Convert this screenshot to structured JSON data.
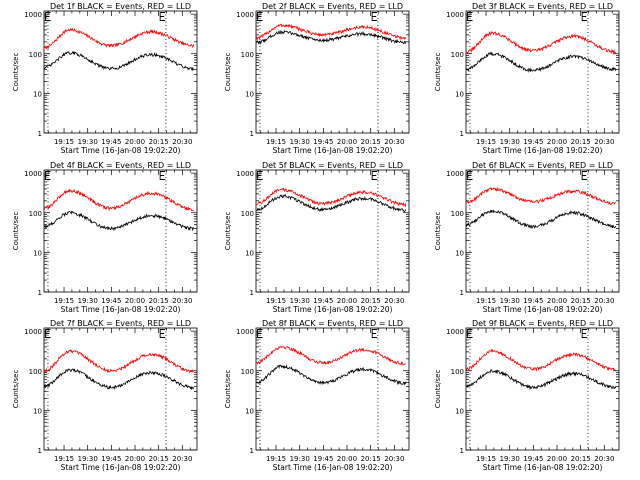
{
  "figure": {
    "background": "#ffffff",
    "colors": {
      "events": "#000000",
      "lld": "#ff0000",
      "axes": "#000000"
    }
  },
  "chart_data": [
    {
      "type": "line",
      "title": "Det 1f BLACK = Events, RED = LLD",
      "xlabel": "Start Time (16-Jan-08 19:02:20)",
      "ylabel": "Counts/sec",
      "xticklabels": [
        "19:15",
        "19:30",
        "19:45",
        "20:00",
        "20:15",
        "20:30"
      ],
      "xticks_min": [
        12.7,
        27.7,
        42.7,
        57.7,
        72.7,
        87.7
      ],
      "xlim": [
        0,
        97
      ],
      "yscale": "log",
      "ylim": [
        1,
        1200
      ],
      "yticklabels": [
        "1",
        "10",
        "100",
        "1000"
      ],
      "markers": {
        "E_min": [
          0,
          72.7
        ],
        "dotted_min": [
          2.5,
          77.3
        ]
      },
      "series": [
        {
          "color": "#ff0000",
          "peaks": [
            {
              "t": 16.5,
              "v": 400
            },
            {
              "t": 68.0,
              "v": 360
            }
          ],
          "valleys": [
            {
              "t": 0,
              "v": 140
            },
            {
              "t": 42.5,
              "v": 160
            },
            {
              "t": 95,
              "v": 160
            }
          ]
        },
        {
          "color": "#000000",
          "peaks": [
            {
              "t": 16.5,
              "v": 105
            },
            {
              "t": 68.0,
              "v": 95
            }
          ],
          "valleys": [
            {
              "t": 0,
              "v": 45
            },
            {
              "t": 42.5,
              "v": 42
            },
            {
              "t": 95,
              "v": 42
            }
          ]
        }
      ]
    },
    {
      "type": "line",
      "title": "Det 2f BLACK = Events, RED = LLD",
      "xlabel": "Start Time (16-Jan-08 19:02:20)",
      "ylabel": "Counts/sec",
      "xticklabels": [
        "19:15",
        "19:30",
        "19:45",
        "20:00",
        "20:15",
        "20:30"
      ],
      "xticks_min": [
        12.7,
        27.7,
        42.7,
        57.7,
        72.7,
        87.7
      ],
      "xlim": [
        0,
        97
      ],
      "yscale": "log",
      "ylim": [
        1,
        1200
      ],
      "yticklabels": [
        "1",
        "10",
        "100",
        "1000"
      ],
      "markers": {
        "E_min": [
          0,
          72.7
        ],
        "dotted_min": [
          2.5,
          77.3
        ]
      },
      "series": [
        {
          "color": "#ff0000",
          "peaks": [
            {
              "t": 16.5,
              "v": 520
            },
            {
              "t": 68.0,
              "v": 470
            }
          ],
          "valleys": [
            {
              "t": 0,
              "v": 250
            },
            {
              "t": 42.5,
              "v": 300
            },
            {
              "t": 95,
              "v": 250
            }
          ]
        },
        {
          "color": "#000000",
          "peaks": [
            {
              "t": 16.5,
              "v": 350
            },
            {
              "t": 68.0,
              "v": 320
            }
          ],
          "valleys": [
            {
              "t": 0,
              "v": 190
            },
            {
              "t": 42.5,
              "v": 220
            },
            {
              "t": 95,
              "v": 190
            }
          ]
        }
      ]
    },
    {
      "type": "line",
      "title": "Det 3f BLACK = Events, RED = LLD",
      "xlabel": "Start Time (16-Jan-08 19:02:20)",
      "ylabel": "Counts/sec",
      "xticklabels": [
        "19:15",
        "19:30",
        "19:45",
        "20:00",
        "20:15",
        "20:30"
      ],
      "xticks_min": [
        12.7,
        27.7,
        42.7,
        57.7,
        72.7,
        87.7
      ],
      "xlim": [
        0,
        97
      ],
      "yscale": "log",
      "ylim": [
        1,
        1200
      ],
      "yticklabels": [
        "1",
        "10",
        "100",
        "1000"
      ],
      "markers": {
        "E_min": [
          0,
          72.7
        ],
        "dotted_min": [
          2.5,
          77.3
        ]
      },
      "series": [
        {
          "color": "#ff0000",
          "peaks": [
            {
              "t": 16.5,
              "v": 330
            },
            {
              "t": 68.0,
              "v": 280
            }
          ],
          "valleys": [
            {
              "t": 0,
              "v": 110
            },
            {
              "t": 42.5,
              "v": 120
            },
            {
              "t": 95,
              "v": 110
            }
          ]
        },
        {
          "color": "#000000",
          "peaks": [
            {
              "t": 16.5,
              "v": 100
            },
            {
              "t": 68.0,
              "v": 85
            }
          ],
          "valleys": [
            {
              "t": 0,
              "v": 40
            },
            {
              "t": 42.5,
              "v": 38
            },
            {
              "t": 95,
              "v": 40
            }
          ]
        }
      ]
    },
    {
      "type": "line",
      "title": "Det 4f BLACK = Events, RED = LLD",
      "xlabel": "Start Time (16-Jan-08 19:02:20)",
      "ylabel": "Counts/sec",
      "xticklabels": [
        "19:15",
        "19:30",
        "19:45",
        "20:00",
        "20:15",
        "20:30"
      ],
      "xticks_min": [
        12.7,
        27.7,
        42.7,
        57.7,
        72.7,
        87.7
      ],
      "xlim": [
        0,
        97
      ],
      "yscale": "log",
      "ylim": [
        1,
        1200
      ],
      "yticklabels": [
        "1",
        "10",
        "100",
        "1000"
      ],
      "markers": {
        "E_min": [
          0,
          72.7
        ],
        "dotted_min": [
          2.5,
          77.3
        ]
      },
      "series": [
        {
          "color": "#ff0000",
          "peaks": [
            {
              "t": 16.5,
              "v": 360
            },
            {
              "t": 68.0,
              "v": 310
            }
          ],
          "valleys": [
            {
              "t": 0,
              "v": 130
            },
            {
              "t": 42.5,
              "v": 130
            },
            {
              "t": 95,
              "v": 120
            }
          ]
        },
        {
          "color": "#000000",
          "peaks": [
            {
              "t": 16.5,
              "v": 100
            },
            {
              "t": 68.0,
              "v": 85
            }
          ],
          "valleys": [
            {
              "t": 0,
              "v": 45
            },
            {
              "t": 42.5,
              "v": 40
            },
            {
              "t": 95,
              "v": 40
            }
          ]
        }
      ]
    },
    {
      "type": "line",
      "title": "Det 5f BLACK = Events, RED = LLD",
      "xlabel": "Start Time (16-Jan-08 19:02:20)",
      "ylabel": "Counts/sec",
      "xticklabels": [
        "19:15",
        "19:30",
        "19:45",
        "20:00",
        "20:15",
        "20:30"
      ],
      "xticks_min": [
        12.7,
        27.7,
        42.7,
        57.7,
        72.7,
        87.7
      ],
      "xlim": [
        0,
        97
      ],
      "yscale": "log",
      "ylim": [
        1,
        1200
      ],
      "yticklabels": [
        "1",
        "10",
        "100",
        "1000"
      ],
      "markers": {
        "E_min": [
          0,
          72.7
        ],
        "dotted_min": [
          2.5,
          77.3
        ]
      },
      "series": [
        {
          "color": "#ff0000",
          "peaks": [
            {
              "t": 16.5,
              "v": 380
            },
            {
              "t": 68.0,
              "v": 330
            }
          ],
          "valleys": [
            {
              "t": 0,
              "v": 170
            },
            {
              "t": 42.5,
              "v": 170
            },
            {
              "t": 95,
              "v": 160
            }
          ]
        },
        {
          "color": "#000000",
          "peaks": [
            {
              "t": 16.5,
              "v": 260
            },
            {
              "t": 68.0,
              "v": 230
            }
          ],
          "valleys": [
            {
              "t": 0,
              "v": 120
            },
            {
              "t": 42.5,
              "v": 120
            },
            {
              "t": 95,
              "v": 115
            }
          ]
        }
      ]
    },
    {
      "type": "line",
      "title": "Det 6f BLACK = Events, RED = LLD",
      "xlabel": "Start Time (16-Jan-08 19:02:20)",
      "ylabel": "Counts/sec",
      "xticklabels": [
        "19:15",
        "19:30",
        "19:45",
        "20:00",
        "20:15",
        "20:30"
      ],
      "xticks_min": [
        12.7,
        27.7,
        42.7,
        57.7,
        72.7,
        87.7
      ],
      "xlim": [
        0,
        97
      ],
      "yscale": "log",
      "ylim": [
        1,
        1200
      ],
      "yticklabels": [
        "1",
        "10",
        "100",
        "1000"
      ],
      "markers": {
        "E_min": [
          0,
          72.7
        ],
        "dotted_min": [
          2.5,
          77.3
        ]
      },
      "series": [
        {
          "color": "#ff0000",
          "peaks": [
            {
              "t": 16.5,
              "v": 400
            },
            {
              "t": 68.0,
              "v": 350
            }
          ],
          "valleys": [
            {
              "t": 0,
              "v": 180
            },
            {
              "t": 42.5,
              "v": 190
            },
            {
              "t": 95,
              "v": 170
            }
          ]
        },
        {
          "color": "#000000",
          "peaks": [
            {
              "t": 16.5,
              "v": 110
            },
            {
              "t": 68.0,
              "v": 100
            }
          ],
          "valleys": [
            {
              "t": 0,
              "v": 50
            },
            {
              "t": 42.5,
              "v": 45
            },
            {
              "t": 95,
              "v": 45
            }
          ]
        }
      ]
    },
    {
      "type": "line",
      "title": "Det 7f BLACK = Events, RED = LLD",
      "xlabel": "Start Time (16-Jan-08 19:02:20)",
      "ylabel": "Counts/sec",
      "xticklabels": [
        "19:15",
        "19:30",
        "19:45",
        "20:00",
        "20:15",
        "20:30"
      ],
      "xticks_min": [
        12.7,
        27.7,
        42.7,
        57.7,
        72.7,
        87.7
      ],
      "xlim": [
        0,
        97
      ],
      "yscale": "log",
      "ylim": [
        1,
        1200
      ],
      "yticklabels": [
        "1",
        "10",
        "100",
        "1000"
      ],
      "markers": {
        "E_min": [
          0,
          72.7
        ],
        "dotted_min": [
          2.5,
          77.3
        ]
      },
      "series": [
        {
          "color": "#ff0000",
          "peaks": [
            {
              "t": 16.5,
              "v": 310
            },
            {
              "t": 68.0,
              "v": 260
            }
          ],
          "valleys": [
            {
              "t": 0,
              "v": 100
            },
            {
              "t": 42.5,
              "v": 100
            },
            {
              "t": 95,
              "v": 95
            }
          ]
        },
        {
          "color": "#000000",
          "peaks": [
            {
              "t": 16.5,
              "v": 105
            },
            {
              "t": 68.0,
              "v": 90
            }
          ],
          "valleys": [
            {
              "t": 0,
              "v": 40
            },
            {
              "t": 42.5,
              "v": 38
            },
            {
              "t": 95,
              "v": 38
            }
          ]
        }
      ]
    },
    {
      "type": "line",
      "title": "Det 8f BLACK = Events, RED = LLD",
      "xlabel": "Start Time (16-Jan-08 19:02:20)",
      "ylabel": "Counts/sec",
      "xticklabels": [
        "19:15",
        "19:30",
        "19:45",
        "20:00",
        "20:15",
        "20:30"
      ],
      "xticks_min": [
        12.7,
        27.7,
        42.7,
        57.7,
        72.7,
        87.7
      ],
      "xlim": [
        0,
        97
      ],
      "yscale": "log",
      "ylim": [
        1,
        1200
      ],
      "yticklabels": [
        "1",
        "10",
        "100",
        "1000"
      ],
      "markers": {
        "E_min": [
          0,
          72.7
        ],
        "dotted_min": [
          2.5,
          77.3
        ]
      },
      "series": [
        {
          "color": "#ff0000",
          "peaks": [
            {
              "t": 16.5,
              "v": 400
            },
            {
              "t": 68.0,
              "v": 340
            }
          ],
          "valleys": [
            {
              "t": 0,
              "v": 160
            },
            {
              "t": 42.5,
              "v": 160
            },
            {
              "t": 95,
              "v": 150
            }
          ]
        },
        {
          "color": "#000000",
          "peaks": [
            {
              "t": 16.5,
              "v": 130
            },
            {
              "t": 68.0,
              "v": 110
            }
          ],
          "valleys": [
            {
              "t": 0,
              "v": 50
            },
            {
              "t": 42.5,
              "v": 50
            },
            {
              "t": 95,
              "v": 48
            }
          ]
        }
      ]
    },
    {
      "type": "line",
      "title": "Det 9f BLACK = Events, RED = LLD",
      "xlabel": "Start Time (16-Jan-08 19:02:20)",
      "ylabel": "Counts/sec",
      "xticklabels": [
        "19:15",
        "19:30",
        "19:45",
        "20:00",
        "20:15",
        "20:30"
      ],
      "xticks_min": [
        12.7,
        27.7,
        42.7,
        57.7,
        72.7,
        87.7
      ],
      "xlim": [
        0,
        97
      ],
      "yscale": "log",
      "ylim": [
        1,
        1200
      ],
      "yticklabels": [
        "1",
        "10",
        "100",
        "1000"
      ],
      "markers": {
        "E_min": [
          0,
          72.7
        ],
        "dotted_min": [
          2.5,
          77.3
        ]
      },
      "series": [
        {
          "color": "#ff0000",
          "peaks": [
            {
              "t": 16.5,
              "v": 310
            },
            {
              "t": 68.0,
              "v": 260
            }
          ],
          "valleys": [
            {
              "t": 0,
              "v": 110
            },
            {
              "t": 42.5,
              "v": 110
            },
            {
              "t": 95,
              "v": 105
            }
          ]
        },
        {
          "color": "#000000",
          "peaks": [
            {
              "t": 16.5,
              "v": 100
            },
            {
              "t": 68.0,
              "v": 85
            }
          ],
          "valleys": [
            {
              "t": 0,
              "v": 40
            },
            {
              "t": 42.5,
              "v": 38
            },
            {
              "t": 95,
              "v": 38
            }
          ]
        }
      ]
    }
  ]
}
